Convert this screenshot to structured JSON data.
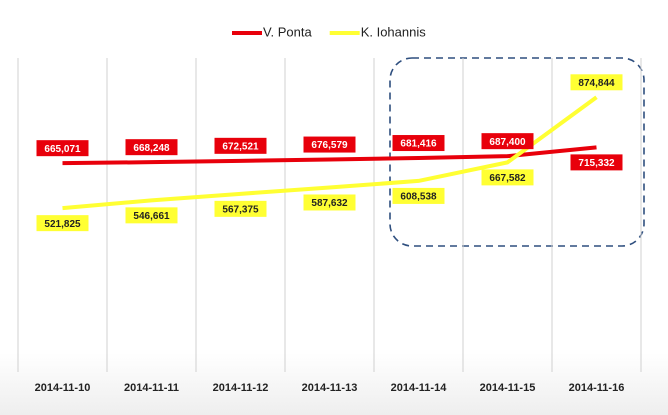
{
  "chart_data": {
    "type": "line",
    "categories": [
      "2014-11-10",
      "2014-11-11",
      "2014-11-12",
      "2014-11-13",
      "2014-11-14",
      "2014-11-15",
      "2014-11-16"
    ],
    "series": [
      {
        "name": "V. Ponta",
        "color": "#e8000b",
        "label_text_color": "#ffffff",
        "values": [
          665071,
          668248,
          672521,
          676579,
          681416,
          687400,
          715332
        ],
        "value_labels": [
          "665,071",
          "668,248",
          "672,521",
          "676,579",
          "681,416",
          "687,400",
          "715,332"
        ]
      },
      {
        "name": "K. Iohannis",
        "color": "#ffff33",
        "label_text_color": "#222222",
        "values": [
          521825,
          546661,
          567375,
          587632,
          608538,
          667582,
          874844
        ],
        "value_labels": [
          "521,825",
          "546,661",
          "567,375",
          "587,632",
          "608,538",
          "667,582",
          "874,844"
        ]
      }
    ],
    "ylim": [
      0,
      1000000
    ],
    "legend": "top"
  }
}
